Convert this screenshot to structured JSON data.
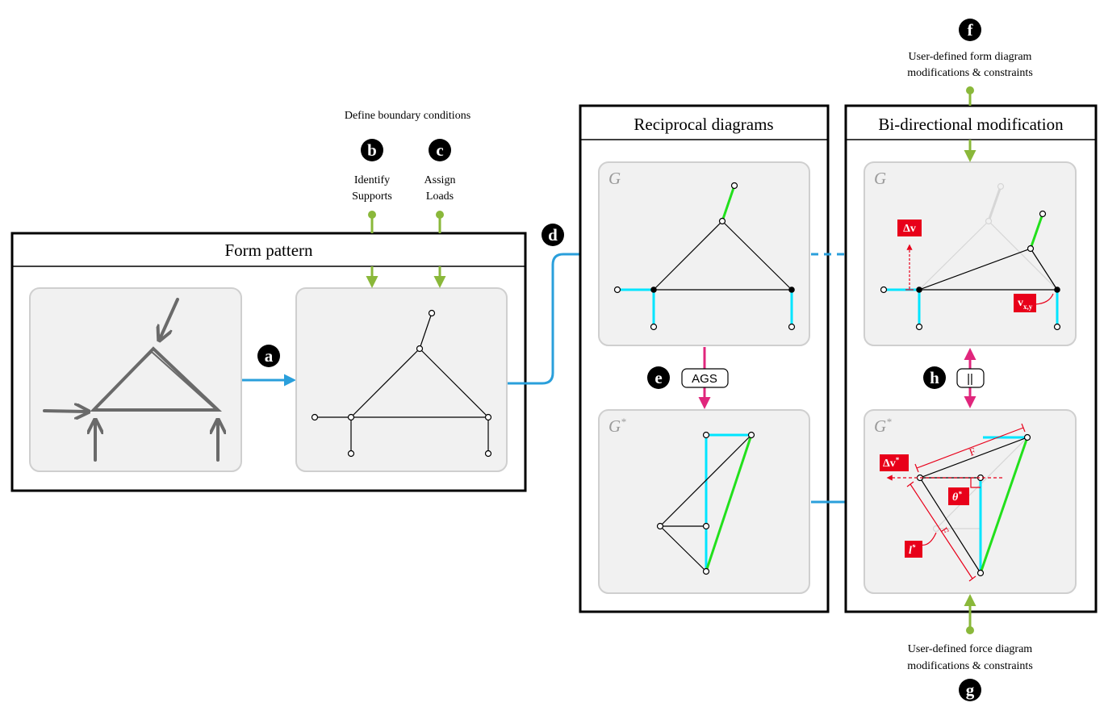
{
  "titles": {
    "form_pattern": "Form pattern",
    "reciprocal": "Reciprocal diagrams",
    "bidirectional": "Bi-directional modification"
  },
  "boundary": {
    "heading": "Define boundary conditions",
    "identify_line1": "Identify",
    "identify_line2": "Supports",
    "assign_line1": "Assign",
    "assign_line2": "Loads"
  },
  "badges": {
    "a": "a",
    "b": "b",
    "c": "c",
    "d": "d",
    "e": "e",
    "f": "f",
    "g": "g",
    "h": "h"
  },
  "operators": {
    "ags": "AGS",
    "parallel": "||"
  },
  "diagram_labels": {
    "form": "G",
    "force": "G",
    "force_sup": "*"
  },
  "user_defined": {
    "form_line1": "User-defined form diagram",
    "form_line2": "modifications & constraints",
    "force_line1": "User-defined force diagram",
    "force_line2": "modifications & constraints"
  },
  "annotations": {
    "delta_v": "Δv",
    "delta_v_star": "Δv",
    "v_xy": "v",
    "v_xy_sub": "x,y",
    "theta_star": "θ",
    "l_star": "l",
    "star": "*",
    "f_label": "F"
  },
  "colors": {
    "blue_arrow": "#2a9fdb",
    "green": "#8ab83a",
    "magenta": "#e0267c",
    "cyan": "#00e5ff",
    "bright_green": "#22e01c",
    "red": "#e8001a",
    "panel_fill": "#f1f1f1",
    "panel_stroke": "#cfcfcf",
    "sketch": "#6a6a6a"
  }
}
